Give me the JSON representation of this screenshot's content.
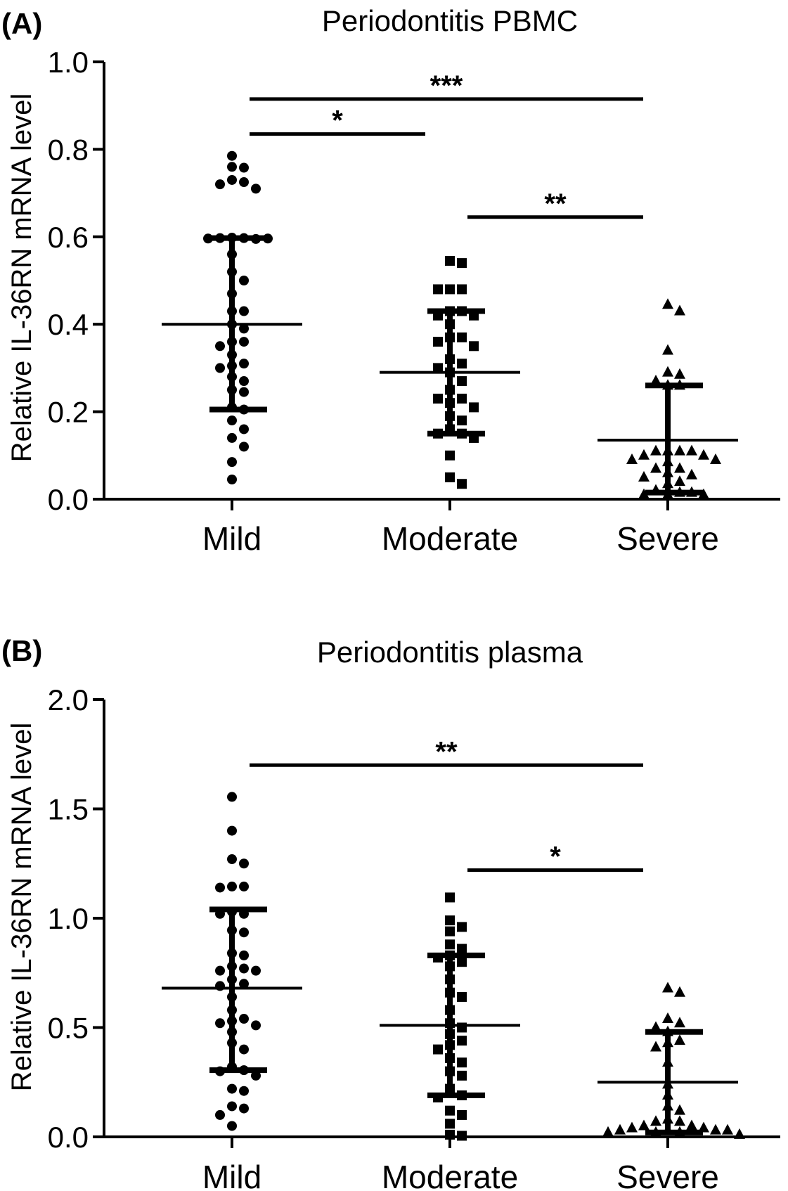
{
  "chart_data": [
    {
      "type": "scatter",
      "panel_label": "(A)",
      "title": "Periodontitis PBMC",
      "ylabel": "Relative IL-36RN mRNA level",
      "categories": [
        "Mild",
        "Moderate",
        "Severe"
      ],
      "ylim": [
        0,
        1.0
      ],
      "yticks": [
        "0.0",
        "0.2",
        "0.4",
        "0.6",
        "0.8",
        "1.0"
      ],
      "marker_shapes": [
        "circle",
        "square",
        "triangle"
      ],
      "series": [
        {
          "category": "Mild",
          "mean": 0.4,
          "sd_low": 0.205,
          "sd_high": 0.597,
          "points": [
            0.785,
            0.76,
            0.758,
            0.73,
            0.725,
            0.72,
            0.71,
            0.598,
            0.597,
            0.597,
            0.595,
            0.596,
            0.596,
            0.56,
            0.52,
            0.5,
            0.47,
            0.43,
            0.43,
            0.4,
            0.39,
            0.36,
            0.36,
            0.35,
            0.33,
            0.31,
            0.305,
            0.3,
            0.28,
            0.27,
            0.25,
            0.245,
            0.21,
            0.205,
            0.18,
            0.16,
            0.14,
            0.12,
            0.085,
            0.045
          ]
        },
        {
          "category": "Moderate",
          "mean": 0.29,
          "sd_low": 0.15,
          "sd_high": 0.43,
          "points": [
            0.545,
            0.54,
            0.48,
            0.48,
            0.48,
            0.43,
            0.43,
            0.42,
            0.42,
            0.4,
            0.37,
            0.37,
            0.36,
            0.35,
            0.32,
            0.31,
            0.3,
            0.29,
            0.27,
            0.25,
            0.23,
            0.23,
            0.22,
            0.21,
            0.19,
            0.18,
            0.16,
            0.15,
            0.15,
            0.14,
            0.1,
            0.05,
            0.035
          ]
        },
        {
          "category": "Severe",
          "mean": 0.135,
          "sd_low": 0.015,
          "sd_high": 0.26,
          "points": [
            0.445,
            0.43,
            0.34,
            0.29,
            0.285,
            0.27,
            0.26,
            0.26,
            0.11,
            0.11,
            0.11,
            0.11,
            0.1,
            0.1,
            0.09,
            0.09,
            0.085,
            0.07,
            0.07,
            0.06,
            0.055,
            0.05,
            0.04,
            0.035,
            0.02,
            0.015,
            0.015,
            0.01,
            0.01,
            0.01
          ]
        }
      ],
      "significance": [
        {
          "from": "Mild",
          "to": "Severe",
          "y": 0.915,
          "label": "***"
        },
        {
          "from": "Mild",
          "to": "Moderate",
          "y": 0.835,
          "label": "*"
        },
        {
          "from": "Moderate",
          "to": "Severe",
          "y": 0.645,
          "label": "**"
        }
      ]
    },
    {
      "type": "scatter",
      "panel_label": "(B)",
      "title": "Periodontitis plasma",
      "ylabel": "Relative IL-36RN mRNA level",
      "categories": [
        "Mild",
        "Moderate",
        "Severe"
      ],
      "ylim": [
        0,
        2.0
      ],
      "yticks": [
        "0.0",
        "0.5",
        "1.0",
        "1.5",
        "2.0"
      ],
      "marker_shapes": [
        "circle",
        "square",
        "triangle"
      ],
      "series": [
        {
          "category": "Mild",
          "mean": 0.68,
          "sd_low": 0.305,
          "sd_high": 1.04,
          "points": [
            1.555,
            1.4,
            1.27,
            1.25,
            1.145,
            1.145,
            1.14,
            1.03,
            1.02,
            1.02,
            0.945,
            0.935,
            0.84,
            0.83,
            0.78,
            0.77,
            0.76,
            0.76,
            0.72,
            0.7,
            0.69,
            0.64,
            0.58,
            0.54,
            0.53,
            0.52,
            0.51,
            0.48,
            0.43,
            0.4,
            0.32,
            0.305,
            0.3,
            0.28,
            0.22,
            0.21,
            0.14,
            0.13,
            0.1,
            0.05
          ]
        },
        {
          "category": "Moderate",
          "mean": 0.51,
          "sd_low": 0.19,
          "sd_high": 0.83,
          "points": [
            1.095,
            0.99,
            0.96,
            0.94,
            0.88,
            0.86,
            0.83,
            0.82,
            0.8,
            0.78,
            0.72,
            0.66,
            0.64,
            0.58,
            0.52,
            0.5,
            0.47,
            0.44,
            0.42,
            0.4,
            0.36,
            0.34,
            0.3,
            0.28,
            0.22,
            0.19,
            0.18,
            0.12,
            0.1,
            0.06,
            0.01,
            0.005
          ]
        },
        {
          "category": "Severe",
          "mean": 0.25,
          "sd_low": 0.02,
          "sd_high": 0.48,
          "points": [
            0.68,
            0.66,
            0.54,
            0.52,
            0.5,
            0.48,
            0.44,
            0.43,
            0.41,
            0.34,
            0.24,
            0.19,
            0.14,
            0.12,
            0.08,
            0.07,
            0.07,
            0.05,
            0.05,
            0.04,
            0.04,
            0.03,
            0.03,
            0.03,
            0.03,
            0.02,
            0.02,
            0.02,
            0.01
          ]
        }
      ],
      "significance": [
        {
          "from": "Mild",
          "to": "Severe",
          "y": 1.7,
          "label": "**"
        },
        {
          "from": "Moderate",
          "to": "Severe",
          "y": 1.22,
          "label": "*"
        }
      ]
    }
  ]
}
